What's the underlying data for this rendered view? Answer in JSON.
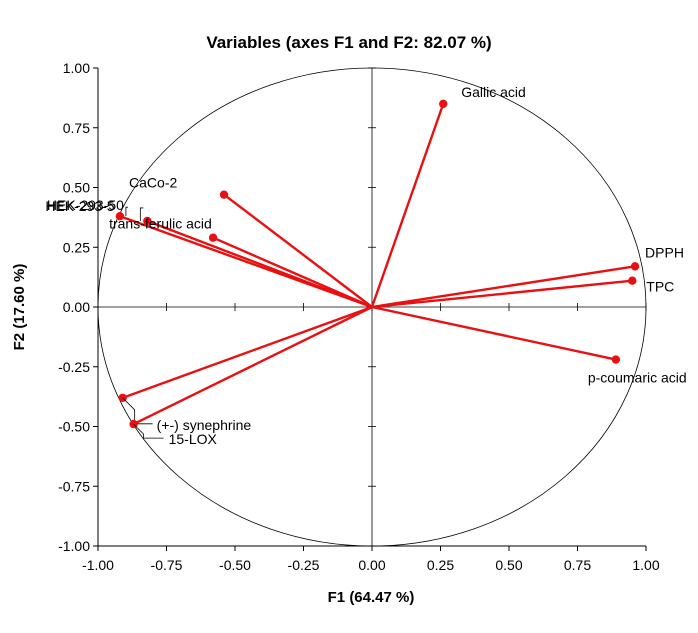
{
  "chart_data": {
    "type": "scatter",
    "title": "Variables (axes F1 and F2: 82.07 %)",
    "xlabel": "F1 (64.47 %)",
    "ylabel": "F2 (17.60 %)",
    "xlim": [
      -1.0,
      1.0
    ],
    "ylim": [
      -1.0,
      1.0
    ],
    "x_ticks": [
      "-1.00",
      "-0.75",
      "-0.50",
      "-0.25",
      "0.00",
      "0.25",
      "0.50",
      "0.75",
      "1.00"
    ],
    "y_ticks": [
      "1.00",
      "0.75",
      "0.50",
      "0.25",
      "0.00",
      "-0.25",
      "-0.50",
      "-0.75",
      "-1.00"
    ],
    "correlation_circle": true,
    "vector_color": "#e81010",
    "series": [
      {
        "points": [
          {
            "label": "Gallic acid",
            "x": 0.26,
            "y": 0.85
          },
          {
            "label": "DPPH",
            "x": 0.96,
            "y": 0.17
          },
          {
            "label": "TPC",
            "x": 0.95,
            "y": 0.11
          },
          {
            "label": "p-coumaric acid",
            "x": 0.89,
            "y": -0.22
          },
          {
            "label": "CaCo-2",
            "x": -0.54,
            "y": 0.47
          },
          {
            "label": "HEK-293-5",
            "x": -0.82,
            "y": 0.36
          },
          {
            "label": "HEK-293-50",
            "x": -0.92,
            "y": 0.38
          },
          {
            "label": "trans-ferulic acid",
            "x": -0.58,
            "y": 0.29
          },
          {
            "label": "(+-) synephrine",
            "x": -0.91,
            "y": -0.38
          },
          {
            "label": "15-LOX",
            "x": -0.87,
            "y": -0.49
          }
        ]
      }
    ]
  }
}
